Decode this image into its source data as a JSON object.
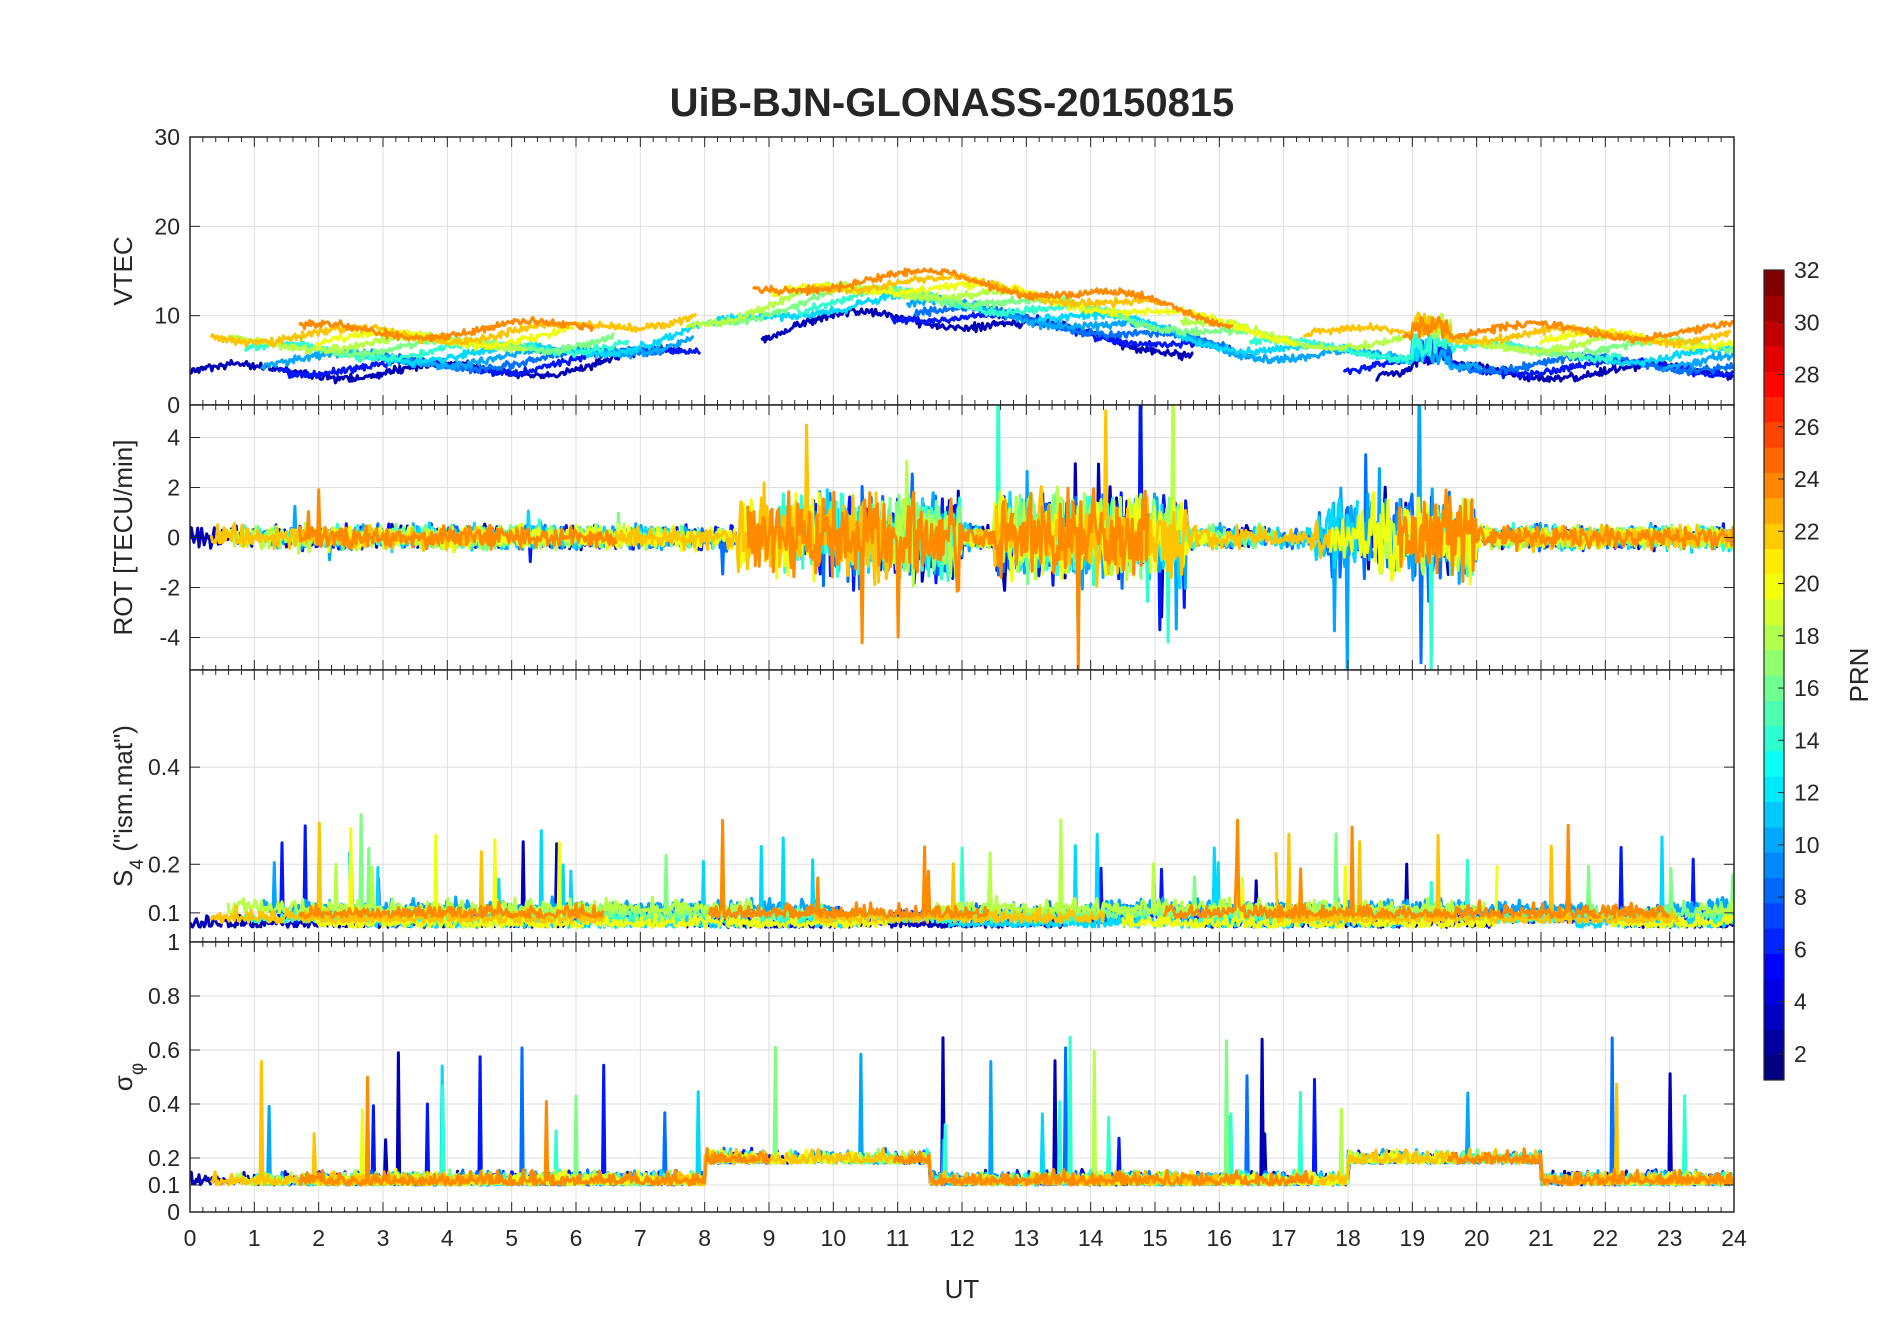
{
  "chart_data": {
    "type": "line",
    "title": "UiB-BJN-GLONASS-20150815",
    "xlabel": "UT",
    "xlim": [
      0,
      24
    ],
    "xticks": [
      "0",
      "1",
      "2",
      "3",
      "4",
      "5",
      "6",
      "7",
      "8",
      "9",
      "10",
      "11",
      "12",
      "13",
      "14",
      "15",
      "16",
      "17",
      "18",
      "19",
      "20",
      "21",
      "22",
      "23",
      "24"
    ],
    "grid": true,
    "colorbar": {
      "label": "PRN",
      "range": [
        1,
        32
      ],
      "ticks": [
        "2",
        "4",
        "6",
        "8",
        "10",
        "12",
        "14",
        "16",
        "18",
        "20",
        "22",
        "24",
        "26",
        "28",
        "30",
        "32"
      ],
      "colormap": "jet"
    },
    "panels": [
      {
        "ylabel": "VTEC",
        "ylim": [
          0,
          30
        ],
        "yticks": [
          "0",
          "10",
          "20",
          "30"
        ],
        "yticks_values": [
          0,
          10,
          20,
          30
        ],
        "series_hint": "multiple PRN traces, roughly 5-8 at night rising to 10-20 around 10-12 UT"
      },
      {
        "ylabel": "ROT [TECU/min]",
        "ylim": [
          -5.3,
          5.3
        ],
        "yticks": [
          "-4",
          "-2",
          "0",
          "2",
          "4"
        ],
        "yticks_values": [
          -4,
          -2,
          0,
          2,
          4
        ]
      },
      {
        "ylabel": "S4 (\"ism.mat\")",
        "ylabel_main": "S",
        "ylabel_sub": "4",
        "ylabel_rest": " (\"ism.mat\")",
        "ylim": [
          0.04,
          0.6
        ],
        "yticks": [
          "0.1",
          "0.2",
          "0.4"
        ],
        "yticks_values": [
          0.1,
          0.2,
          0.4
        ]
      },
      {
        "ylabel": "σφ",
        "ylabel_main": "σ",
        "ylabel_sub": "φ",
        "ylim": [
          0,
          1
        ],
        "yticks": [
          "0",
          "0.1",
          "0.2",
          "0.4",
          "0.6",
          "0.8",
          "1"
        ],
        "yticks_values": [
          0,
          0.1,
          0.2,
          0.4,
          0.6,
          0.8,
          1
        ]
      }
    ],
    "series": [
      {
        "prn": 2,
        "color": "#0000b8"
      },
      {
        "prn": 5,
        "color": "#0016ff"
      },
      {
        "prn": 8,
        "color": "#0070ff"
      },
      {
        "prn": 10,
        "color": "#00a6ff"
      },
      {
        "prn": 12,
        "color": "#00d8ff"
      },
      {
        "prn": 14,
        "color": "#30ffcf"
      },
      {
        "prn": 16,
        "color": "#7cff84"
      },
      {
        "prn": 18,
        "color": "#b8ff48"
      },
      {
        "prn": 20,
        "color": "#f0ff0f"
      },
      {
        "prn": 22,
        "color": "#ffc400"
      },
      {
        "prn": 24,
        "color": "#ff8a00"
      }
    ]
  }
}
